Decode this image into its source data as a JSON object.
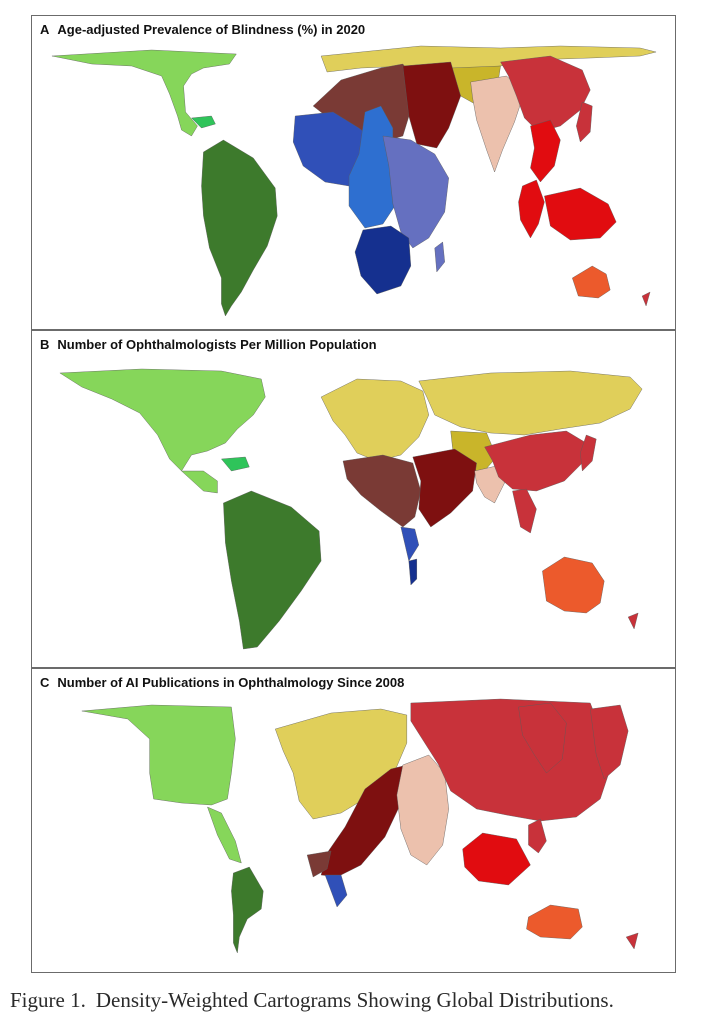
{
  "palette": {
    "light-green": "#86d65a",
    "bright-green": "#2fc45a",
    "dark-green": "#3d7a2c",
    "olive": "#c9b52a",
    "mustard": "#e0cf5a",
    "maroon": "#7a3a35",
    "dark-red": "#7e1010",
    "red": "#c8323a",
    "bright-red": "#e10c10",
    "orange": "#ec5a2c",
    "peach": "#ecc1ad",
    "blue": "#3050b8",
    "medium-blue": "#2e6fd0",
    "slate-blue": "#6570c0",
    "navy": "#15308f"
  },
  "panels": [
    {
      "letter": "A",
      "title": "Age-adjusted Prevalence of Blindness (%) in 2020"
    },
    {
      "letter": "B",
      "title": "Number of Ophthalmologists Per Million Population"
    },
    {
      "letter": "C",
      "title": "Number of AI Publications in Ophthalmology Since 2008"
    }
  ],
  "caption": {
    "label": "Figure 1.",
    "text": "Density-Weighted Cartograms Showing Global Distributions."
  }
}
